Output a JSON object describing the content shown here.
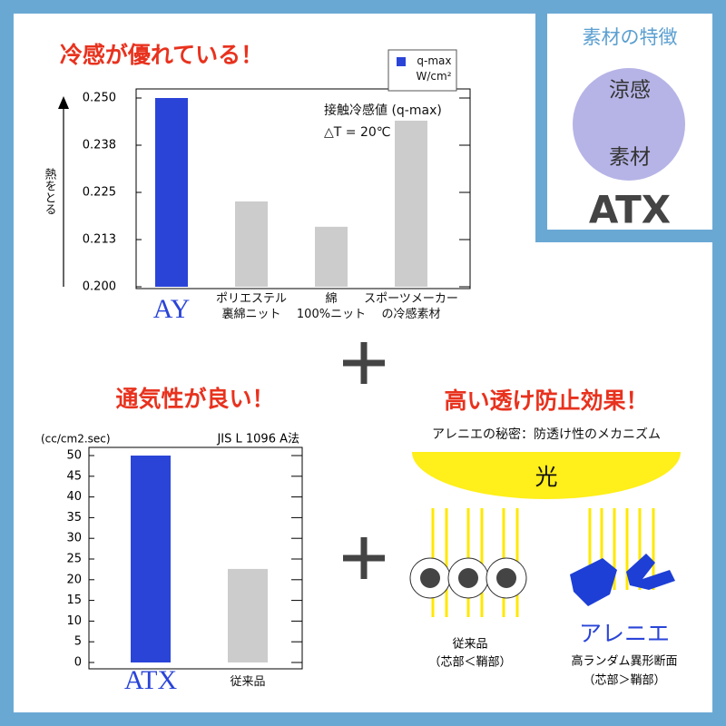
{
  "chart_data": [
    {
      "type": "bar",
      "title": "冷感が優れている！",
      "y_label": "熱をとる",
      "annotation": "接触冷感値 (q-max)\n△T = 20℃",
      "categories": [
        "AY",
        "ポリエステル\n裏綿ニット",
        "綿\n100%ニット",
        "スポーツメーカー\nの冷感素材"
      ],
      "series": [
        {
          "name": "q-max\nW/cm²",
          "color": "#2a44d8",
          "values": [
            0.25,
            0.2226,
            0.2159,
            0.244
          ]
        }
      ],
      "colors": [
        "#2a44d8",
        "#cccccc",
        "#cccccc",
        "#cccccc"
      ],
      "ylim": [
        0.2,
        0.25
      ],
      "yticks": [
        {
          "value": 0.2,
          "label": "0.200"
        },
        {
          "value": 0.2125,
          "label": "0.213"
        },
        {
          "value": 0.225,
          "label": "0.225"
        },
        {
          "value": 0.2375,
          "label": "0.238"
        },
        {
          "value": 0.25,
          "label": "0.250"
        }
      ]
    },
    {
      "type": "bar",
      "title": "通気性が良い！",
      "y_label": "(cc/cm2.sec)",
      "annotation": "JIS L 1096  A法",
      "categories": [
        "ATX",
        "従来品"
      ],
      "values": [
        50,
        22.6
      ],
      "colors": [
        "#2a44d8",
        "#cccccc"
      ],
      "ylim": [
        0,
        50
      ],
      "yticks": [
        0,
        5,
        10,
        15,
        20,
        25,
        30,
        35,
        40,
        45,
        50
      ]
    }
  ],
  "badge": {
    "title": "素材の特徴",
    "circle_top": "涼感",
    "circle_bottom": "素材",
    "name": "ATX"
  },
  "diagram": {
    "title": "高い透け防止効果！",
    "subtitle": "アレニエの秘密：防透け性のメカニズム",
    "light": "光",
    "left_label": "従来品",
    "left_note": "（芯部＜鞘部）",
    "right_label": "アレニエ",
    "right_sub": "高ランダム異形断面",
    "right_note": "（芯部＞鞘部）"
  }
}
